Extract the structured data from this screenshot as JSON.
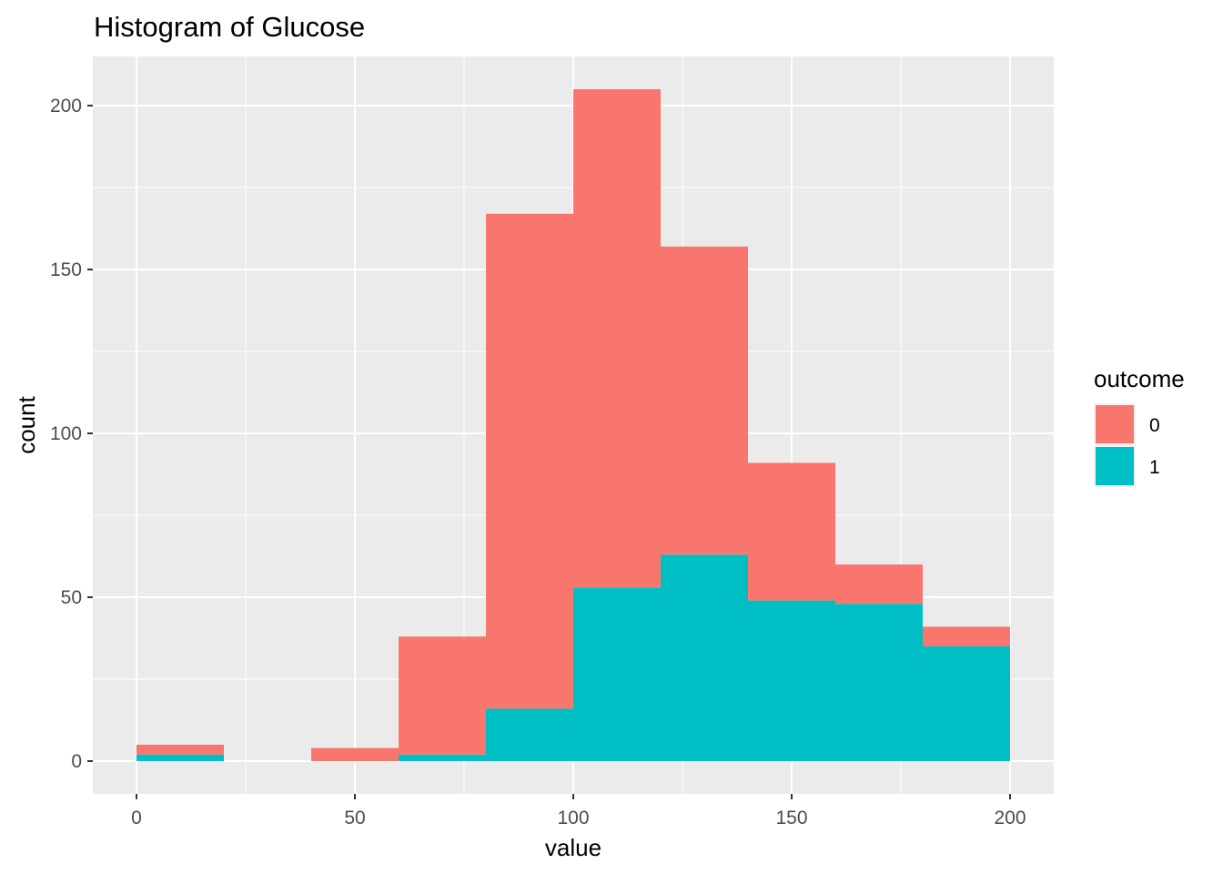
{
  "chart_data": {
    "type": "bar",
    "stacked": true,
    "title": "Histogram of Glucose",
    "xlabel": "value",
    "ylabel": "count",
    "bin_width": 20,
    "bins": [
      0,
      20,
      40,
      60,
      80,
      100,
      120,
      140,
      160,
      180
    ],
    "series": [
      {
        "name": "0",
        "color": "#F8766D",
        "values": [
          3,
          0,
          4,
          36,
          151,
          152,
          94,
          42,
          12,
          6
        ]
      },
      {
        "name": "1",
        "color": "#00BFC4",
        "values": [
          2,
          0,
          0,
          2,
          16,
          53,
          63,
          49,
          48,
          35
        ]
      }
    ],
    "xlim": [
      -10,
      210
    ],
    "ylim": [
      -10,
      215
    ],
    "x_ticks": [
      0,
      50,
      100,
      150,
      200
    ],
    "x_tick_labels": [
      "0",
      "50",
      "100",
      "150",
      "200"
    ],
    "y_ticks": [
      0,
      50,
      100,
      150,
      200
    ],
    "y_tick_labels": [
      "0",
      "50",
      "100",
      "150",
      "200"
    ],
    "grid": true,
    "panel_background": "#EBEBEB",
    "legend": {
      "title": "outcome",
      "placement": "right",
      "entries": [
        "0",
        "1"
      ]
    }
  }
}
